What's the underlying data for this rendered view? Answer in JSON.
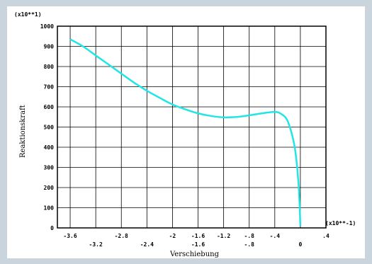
{
  "chart_data": {
    "type": "line",
    "xlabel": "Verschiebung",
    "ylabel": "Reaktionskraft",
    "x_multiplier": "(x10**-1)",
    "y_multiplier": "(x10**1)",
    "xlim": [
      -3.8,
      0.4
    ],
    "ylim": [
      0,
      1000
    ],
    "x_ticks_upper": [
      "-3.6",
      "-2.8",
      "-2",
      "-1.6",
      "-1.2",
      "-.8",
      "-.4",
      ".4"
    ],
    "x_ticks_lower": [
      "-3.2",
      "-2.4",
      "-1.6",
      "-.8",
      "0"
    ],
    "y_ticks": [
      "0",
      "100",
      "200",
      "300",
      "400",
      "500",
      "600",
      "700",
      "800",
      "900",
      "1000"
    ],
    "grid": true,
    "series": [
      {
        "color": "#22e5e5",
        "x": [
          -3.6,
          -3.4,
          -3.2,
          -3.0,
          -2.8,
          -2.6,
          -2.4,
          -2.2,
          -2.0,
          -1.8,
          -1.6,
          -1.4,
          -1.2,
          -1.0,
          -0.8,
          -0.6,
          -0.4,
          -0.3,
          -0.2,
          -0.1,
          -0.05,
          -0.02,
          0.0
        ],
        "y": [
          935,
          900,
          855,
          810,
          765,
          720,
          680,
          645,
          612,
          588,
          568,
          555,
          548,
          550,
          558,
          568,
          575,
          565,
          530,
          420,
          300,
          170,
          10
        ]
      }
    ]
  }
}
